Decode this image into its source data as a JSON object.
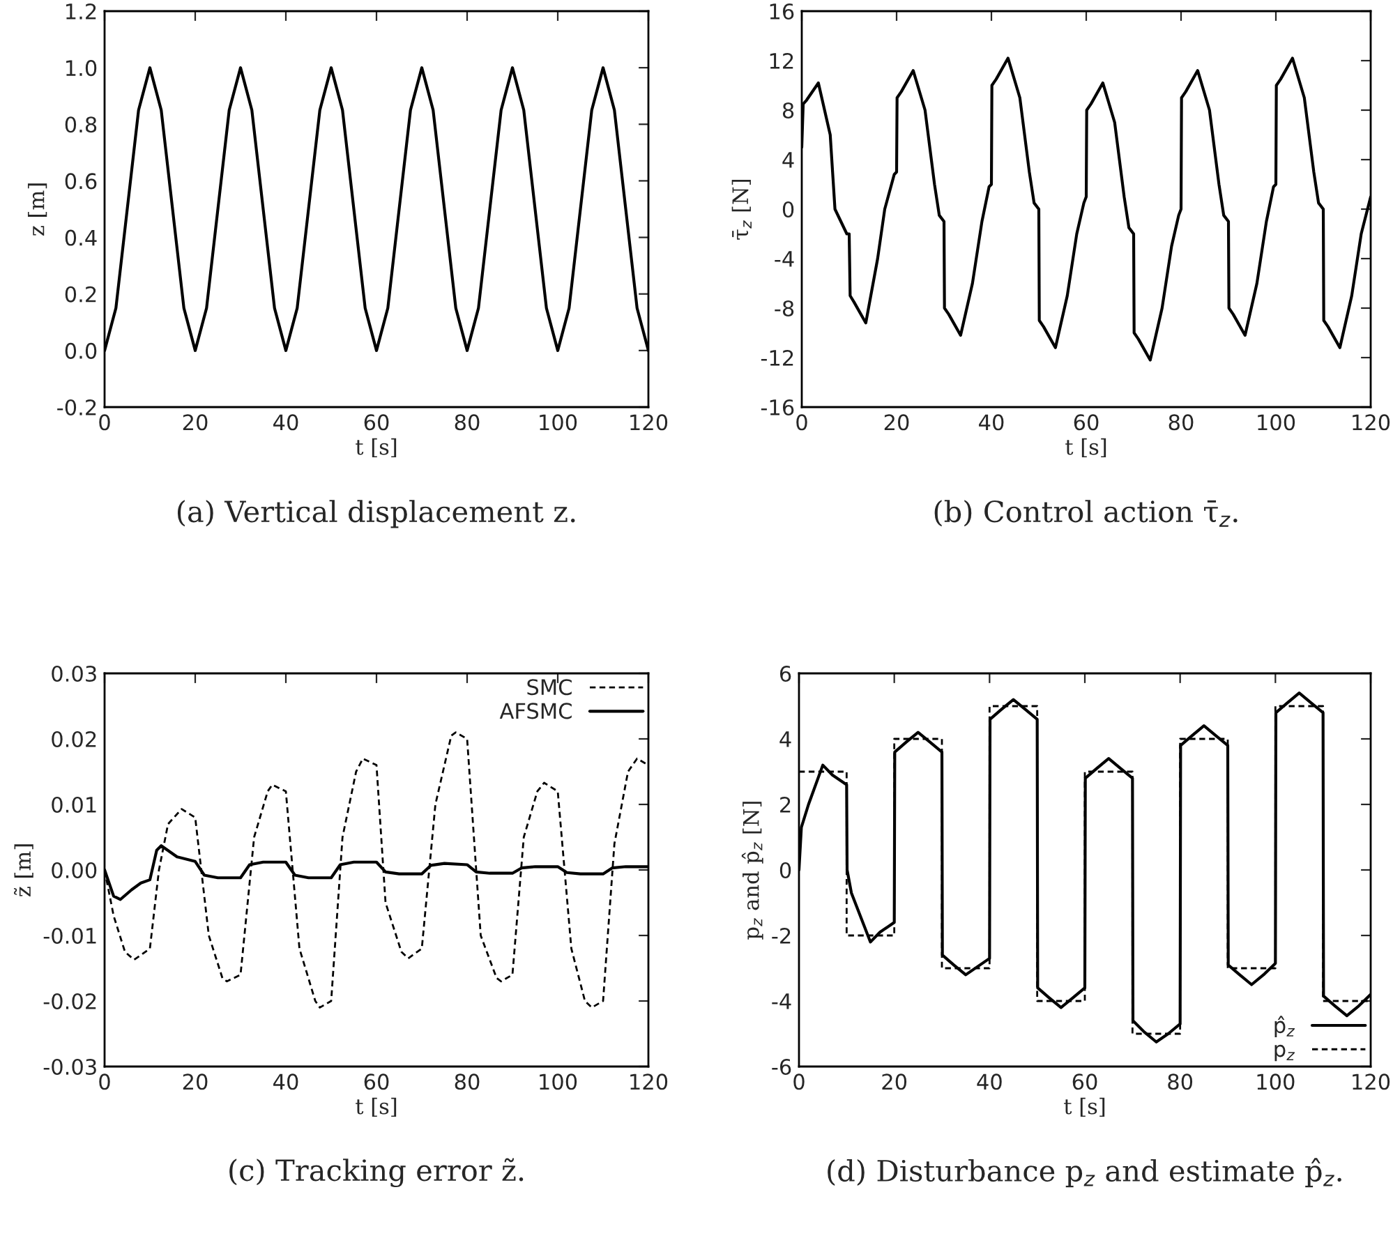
{
  "chart_data": [
    {
      "type": "line",
      "title": "(a) Vertical displacement z.",
      "xlabel": "t [s]",
      "ylabel": "z [m]",
      "xlim": [
        0,
        120
      ],
      "xticks": [
        0,
        20,
        40,
        60,
        80,
        100,
        120
      ],
      "ylim": [
        -0.2,
        1.2
      ],
      "yticks": [
        {
          "value": -0.2,
          "label": "-0.2"
        },
        {
          "value": 0,
          "label": "0.0"
        },
        {
          "value": 0.2,
          "label": "0.2"
        },
        {
          "value": 0.4,
          "label": "0.4"
        },
        {
          "value": 0.6,
          "label": "0.6"
        },
        {
          "value": 0.8,
          "label": "0.8"
        },
        {
          "value": 1.0,
          "label": "1.0"
        },
        {
          "value": 1.2,
          "label": "1.2"
        }
      ],
      "grid": false,
      "legend": false,
      "series": [
        {
          "color": "#000000",
          "line_style": "solid",
          "x": [
            0,
            2.5,
            5,
            7.5,
            10,
            12.5,
            15,
            17.5,
            20,
            22.5,
            25,
            27.5,
            30,
            32.5,
            35,
            37.5,
            40,
            42.5,
            45,
            47.5,
            50,
            52.5,
            55,
            57.5,
            60,
            62.5,
            65,
            67.5,
            70,
            72.5,
            75,
            77.5,
            80,
            82.5,
            85,
            87.5,
            90,
            92.5,
            95,
            97.5,
            100,
            102.5,
            105,
            107.5,
            110,
            112.5,
            115,
            117.5,
            120
          ],
          "values": [
            0,
            0.15,
            0.5,
            0.85,
            1,
            0.85,
            0.5,
            0.15,
            0,
            0.15,
            0.5,
            0.85,
            1,
            0.85,
            0.5,
            0.15,
            0,
            0.15,
            0.5,
            0.85,
            1,
            0.85,
            0.5,
            0.15,
            0,
            0.15,
            0.5,
            0.85,
            1,
            0.85,
            0.5,
            0.15,
            0,
            0.15,
            0.5,
            0.85,
            1,
            0.85,
            0.5,
            0.15,
            0,
            0.15,
            0.5,
            0.85,
            1,
            0.85,
            0.5,
            0.15,
            0
          ]
        }
      ]
    },
    {
      "type": "line",
      "title": "(b) Control action τ̄$_{z}$.",
      "xlabel": "t [s]",
      "ylabel": "τ̄$_{z}$ [N]",
      "xlim": [
        0,
        120
      ],
      "xticks": [
        0,
        20,
        40,
        60,
        80,
        100,
        120
      ],
      "ylim": [
        -16,
        16
      ],
      "yticks": [
        -16,
        -12,
        -8,
        -4,
        0,
        4,
        8,
        12,
        16
      ],
      "grid": false,
      "legend": false,
      "series": [
        {
          "color": "#000000",
          "line_style": "solid",
          "x": [
            0,
            0.3,
            1,
            3.5,
            6,
            7,
            9.5,
            10,
            10.2,
            11,
            13.5,
            16,
            17.5,
            19.5,
            20,
            20.1,
            21,
            23.5,
            26,
            28,
            29,
            30,
            30.1,
            31,
            33.5,
            36,
            38,
            39.5,
            40,
            40.1,
            41,
            43.5,
            46,
            48,
            49,
            50,
            50.1,
            51,
            53.5,
            56,
            58,
            59.5,
            60,
            60.1,
            61,
            63.5,
            66,
            68,
            69,
            70,
            70.1,
            71,
            73.5,
            76,
            78,
            79.5,
            80,
            80.1,
            81,
            83.5,
            86,
            88,
            89,
            90,
            90.1,
            91,
            93.5,
            96,
            98,
            99.5,
            100,
            100.1,
            101,
            103.5,
            106,
            108,
            109,
            110,
            110.1,
            111,
            113.5,
            116,
            118,
            120
          ],
          "values": [
            5,
            8.5,
            8.8,
            10.2,
            6,
            0,
            -2,
            -2,
            -7,
            -7.5,
            -9.2,
            -4,
            0,
            2.8,
            3,
            9,
            9.5,
            11.2,
            8,
            2,
            -0.5,
            -1,
            -8,
            -8.5,
            -10.2,
            -6,
            -1,
            1.8,
            2,
            10,
            10.5,
            12.2,
            9,
            3,
            0.5,
            0,
            -9,
            -9.5,
            -11.2,
            -7,
            -2,
            0.5,
            1,
            8,
            8.5,
            10.2,
            7,
            1,
            -1.5,
            -2,
            -10,
            -10.5,
            -12.2,
            -8,
            -3,
            -0.5,
            0,
            9,
            9.5,
            11.2,
            8,
            2,
            -0.5,
            -1,
            -8,
            -8.5,
            -10.2,
            -6,
            -1,
            1.8,
            2,
            10,
            10.5,
            12.2,
            9,
            3,
            0.5,
            0,
            -9,
            -9.5,
            -11.2,
            -7,
            -2,
            1
          ]
        }
      ]
    },
    {
      "type": "line",
      "title": "(c) Tracking error z̃.",
      "xlabel": "t [s]",
      "ylabel": "z̃ [m]",
      "xlim": [
        0,
        120
      ],
      "xticks": [
        0,
        20,
        40,
        60,
        80,
        100,
        120
      ],
      "ylim": [
        -0.03,
        0.03
      ],
      "yticks": [
        -0.03,
        -0.02,
        -0.01,
        {
          "value": 0,
          "label": "0.00"
        },
        0.01,
        0.02,
        0.03
      ],
      "grid": false,
      "legend": "top right",
      "series": [
        {
          "name": "SMC",
          "color": "#000000",
          "line_style": "dashed",
          "x": [
            0,
            2,
            4.5,
            6.5,
            8,
            10,
            12,
            14,
            17,
            20,
            23,
            26,
            27,
            30,
            33,
            36,
            37,
            40,
            43,
            46.5,
            47.5,
            50,
            52.5,
            55.5,
            57,
            60,
            62,
            65.5,
            67,
            70,
            73,
            76.5,
            77.5,
            80,
            83,
            86.5,
            87.5,
            90,
            92.5,
            95.5,
            97,
            100,
            103,
            106,
            107.5,
            110,
            112.5,
            115.5,
            117.5,
            120
          ],
          "values": [
            0,
            -0.007,
            -0.0125,
            -0.0137,
            -0.013,
            -0.012,
            0,
            0.007,
            0.0093,
            0.008,
            -0.01,
            -0.0165,
            -0.017,
            -0.016,
            0.005,
            0.012,
            0.013,
            0.012,
            -0.012,
            -0.02,
            -0.021,
            -0.02,
            0.005,
            0.015,
            0.017,
            0.016,
            -0.005,
            -0.0125,
            -0.0135,
            -0.012,
            0.01,
            0.0205,
            0.021,
            0.02,
            -0.01,
            -0.0165,
            -0.017,
            -0.016,
            0.005,
            0.012,
            0.0133,
            0.012,
            -0.012,
            -0.02,
            -0.021,
            -0.02,
            0.004,
            0.015,
            0.017,
            0.016
          ]
        },
        {
          "name": "AFSMC",
          "color": "#000000",
          "line_style": "solid",
          "x": [
            0,
            2,
            3.5,
            6,
            8,
            10,
            11.5,
            12.5,
            16,
            20,
            22,
            25,
            30,
            32,
            35,
            40,
            42,
            45,
            50,
            52,
            55,
            60,
            62,
            65,
            70,
            72,
            75,
            80,
            82,
            85,
            90,
            92,
            95,
            100,
            102,
            105,
            110,
            112,
            115,
            120
          ],
          "values": [
            0,
            -0.004,
            -0.0045,
            -0.003,
            -0.002,
            -0.0015,
            0.003,
            0.0037,
            0.002,
            0.0013,
            -0.0008,
            -0.0012,
            -0.0012,
            0.0008,
            0.0012,
            0.0012,
            -0.0008,
            -0.0012,
            -0.0012,
            0.0008,
            0.0012,
            0.0012,
            -0.0003,
            -0.0006,
            -0.0006,
            0.0007,
            0.001,
            0.0008,
            -0.0003,
            -0.0005,
            -0.0005,
            0.0003,
            0.0005,
            0.0005,
            -0.0004,
            -0.0006,
            -0.0006,
            0.0003,
            0.0005,
            0.0005
          ]
        }
      ]
    },
    {
      "type": "line",
      "title": "(d) Disturbance p$_{z}$ and estimate p̂$_{z}$.",
      "xlabel": "t [s]",
      "ylabel": "p$_{z}$ and p̂$_{z}$ [N]",
      "xlim": [
        0,
        120
      ],
      "xticks": [
        0,
        20,
        40,
        60,
        80,
        100,
        120
      ],
      "ylim": [
        -6,
        6
      ],
      "yticks": [
        -6,
        -4,
        -2,
        0,
        2,
        4,
        6
      ],
      "grid": false,
      "legend": "bottom right",
      "series": [
        {
          "name": "p̂$_{z}$",
          "color": "#000000",
          "line_style": "solid",
          "x": [
            0,
            0.5,
            2,
            5,
            7,
            10,
            10.1,
            11,
            15,
            17,
            20,
            20.1,
            22.5,
            25,
            27.5,
            30,
            30.1,
            32.5,
            35,
            37.5,
            40,
            40.1,
            42.5,
            45,
            47.5,
            50,
            50.1,
            52.5,
            55,
            57.5,
            60,
            60.1,
            62.5,
            65,
            67.5,
            70,
            70.1,
            72.5,
            75,
            77.5,
            80,
            80.1,
            82.5,
            85,
            87.5,
            90,
            90.1,
            92.5,
            95,
            97.5,
            100,
            100.1,
            102.5,
            105,
            107.5,
            110,
            110.1,
            112.5,
            115,
            117.5,
            120
          ],
          "values": [
            0,
            1.3,
            2,
            3.2,
            2.9,
            2.6,
            0,
            -0.7,
            -2.2,
            -1.9,
            -1.6,
            3.6,
            3.9,
            4.2,
            3.9,
            3.6,
            -2.6,
            -2.9,
            -3.2,
            -2.95,
            -2.7,
            4.6,
            4.9,
            5.2,
            4.9,
            4.6,
            -3.6,
            -3.9,
            -4.2,
            -3.9,
            -3.6,
            2.8,
            3.1,
            3.4,
            3.1,
            2.8,
            -4.6,
            -4.95,
            -5.25,
            -5.0,
            -4.7,
            3.8,
            4.1,
            4.4,
            4.1,
            3.8,
            -2.9,
            -3.2,
            -3.5,
            -3.2,
            -2.85,
            4.8,
            5.1,
            5.4,
            5.1,
            4.8,
            -3.85,
            -4.15,
            -4.45,
            -4.15,
            -3.8
          ]
        },
        {
          "name": "p$_{z}$",
          "color": "#000000",
          "line_style": "dashed",
          "x": [
            0,
            10,
            10,
            20,
            20,
            30,
            30,
            40,
            40,
            50,
            50,
            60,
            60,
            70,
            70,
            80,
            80,
            90,
            90,
            100,
            100,
            110,
            110,
            120
          ],
          "values": [
            3,
            3,
            -2,
            -2,
            4,
            4,
            -3,
            -3,
            5,
            5,
            -4,
            -4,
            3,
            3,
            -5,
            -5,
            4,
            4,
            -3,
            -3,
            5,
            5,
            -4,
            -4
          ]
        }
      ]
    }
  ]
}
